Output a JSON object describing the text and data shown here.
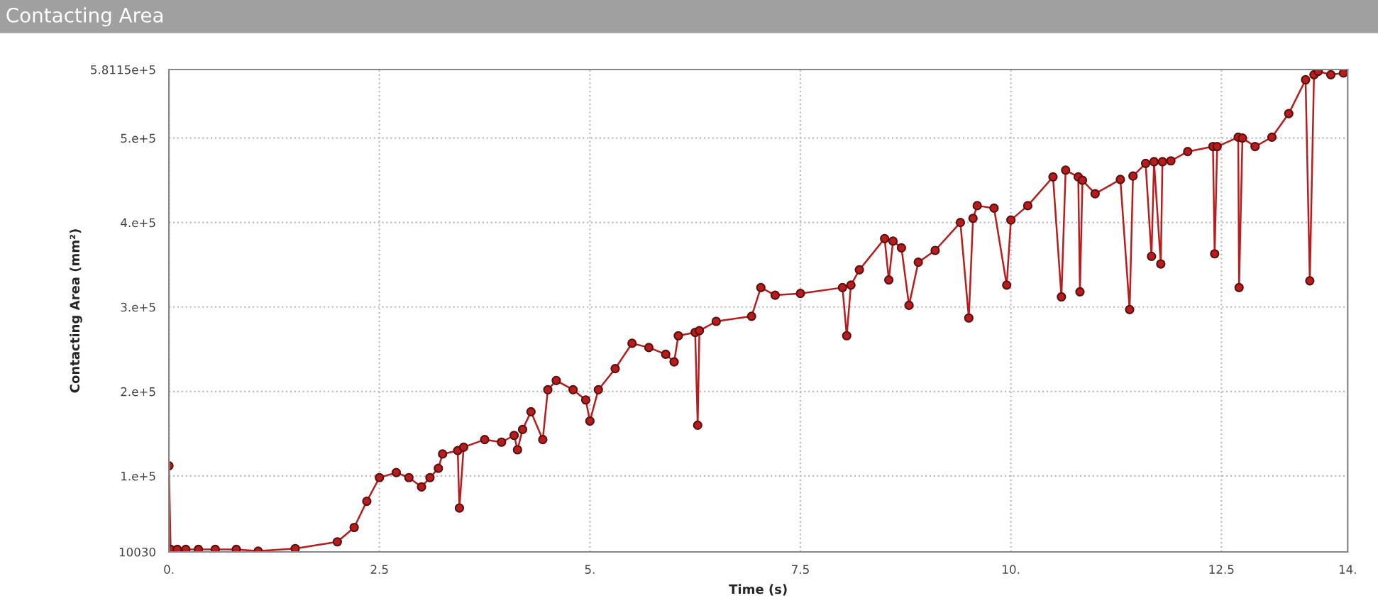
{
  "chart_data": {
    "type": "line",
    "title": "Contacting Area",
    "xlabel": "Time (s)",
    "ylabel": "Contacting Area (mm²)",
    "xlim": [
      0,
      14
    ],
    "ylim": [
      10030,
      581150
    ],
    "xticks": [
      {
        "value": 0,
        "label": "0."
      },
      2.5,
      {
        "value": 5,
        "label": "5."
      },
      7.5,
      {
        "value": 10,
        "label": "10."
      },
      12.5,
      {
        "value": 14,
        "label": "14."
      }
    ],
    "yticks": [
      10030,
      {
        "value": 100000,
        "label": "1.e+5"
      },
      {
        "value": 200000,
        "label": "2.e+5"
      },
      {
        "value": 300000,
        "label": "3.e+5"
      },
      {
        "value": 400000,
        "label": "4.e+5"
      },
      {
        "value": 500000,
        "label": "5.e+5"
      },
      {
        "value": 581150,
        "label": "5.8115e+5"
      }
    ],
    "grid": true,
    "marker": "circle",
    "series": [
      {
        "color": "#b81c1c",
        "x": [
          0,
          0.02,
          0.1,
          0.2,
          0.35,
          0.55,
          0.8,
          1.06,
          1.5,
          2.0,
          2.2,
          2.35,
          2.5,
          2.7,
          2.85,
          3.0,
          3.1,
          3.2,
          3.25,
          3.43,
          3.45,
          3.5,
          3.75,
          3.95,
          4.1,
          4.14,
          4.2,
          4.3,
          4.44,
          4.5,
          4.6,
          4.8,
          4.95,
          5.0,
          5.1,
          5.3,
          5.5,
          5.7,
          5.9,
          6.0,
          6.05,
          6.25,
          6.28,
          6.3,
          6.5,
          6.92,
          7.03,
          7.2,
          7.5,
          8.0,
          8.05,
          8.1,
          8.2,
          8.5,
          8.55,
          8.6,
          8.7,
          8.79,
          8.9,
          9.1,
          9.4,
          9.5,
          9.55,
          9.6,
          9.8,
          9.95,
          10.0,
          10.2,
          10.5,
          10.6,
          10.65,
          10.8,
          10.82,
          10.85,
          11.0,
          11.3,
          11.41,
          11.45,
          11.6,
          11.67,
          11.7,
          11.78,
          11.8,
          11.9,
          12.1,
          12.4,
          12.42,
          12.45,
          12.7,
          12.71,
          12.75,
          12.9,
          13.1,
          13.3,
          13.5,
          13.55,
          13.6,
          13.65,
          13.8,
          13.95
        ],
        "values": [
          112000,
          13000,
          13000,
          13000,
          13000,
          13000,
          13000,
          11000,
          14000,
          22000,
          39000,
          70000,
          98000,
          104000,
          98000,
          87000,
          98000,
          109000,
          126000,
          130000,
          62000,
          134000,
          143000,
          140000,
          148000,
          131000,
          155000,
          176000,
          143000,
          202000,
          213000,
          202000,
          190000,
          165000,
          202000,
          227000,
          257000,
          252000,
          244000,
          235000,
          266000,
          270000,
          160000,
          272000,
          283000,
          289000,
          323000,
          314000,
          316000,
          323000,
          266000,
          326000,
          344000,
          381000,
          332000,
          378000,
          370000,
          302000,
          353000,
          367000,
          400000,
          287000,
          405000,
          420000,
          417000,
          326000,
          403000,
          420000,
          454000,
          312000,
          462000,
          454000,
          318000,
          450000,
          434000,
          451000,
          297000,
          455000,
          470000,
          360000,
          472000,
          351000,
          472000,
          473000,
          484000,
          490000,
          363000,
          490000,
          501000,
          323000,
          500000,
          490000,
          501000,
          529000,
          569000,
          331000,
          575000,
          579000,
          575000,
          577000
        ]
      }
    ]
  }
}
